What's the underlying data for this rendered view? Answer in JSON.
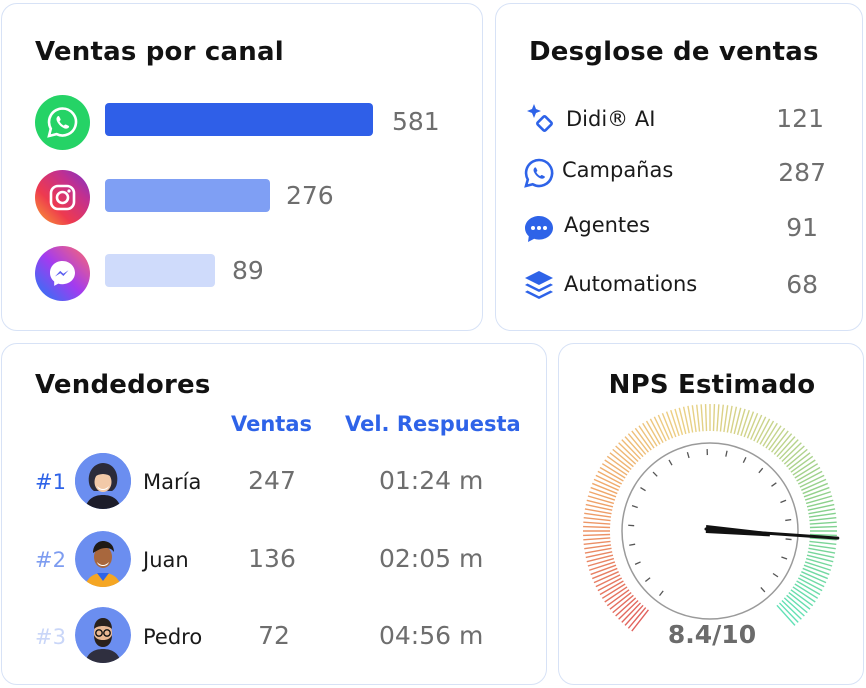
{
  "canal": {
    "title": "Ventas por canal",
    "channels": [
      {
        "name": "whatsapp",
        "value": "581",
        "bar_color": "#2f5fe8",
        "icon": "whatsapp-icon"
      },
      {
        "name": "instagram",
        "value": "276",
        "bar_color": "#7f9ff4",
        "icon": "instagram-icon"
      },
      {
        "name": "messenger",
        "value": "89",
        "bar_color": "#cfdbfb",
        "icon": "messenger-icon"
      }
    ]
  },
  "desglose": {
    "title": "Desglose de ventas",
    "items": [
      {
        "label": "Didi® AI",
        "value": "121",
        "icon": "sparkle-icon"
      },
      {
        "label": "Campañas",
        "value": "287",
        "icon": "whatsapp-icon"
      },
      {
        "label": "Agentes",
        "value": "91",
        "icon": "chat-bubble-icon"
      },
      {
        "label": "Automations",
        "value": "68",
        "icon": "layers-icon"
      }
    ]
  },
  "vendedores": {
    "title": "Vendedores",
    "col_ventas": "Ventas",
    "col_vel": "Vel. Respuesta",
    "rows": [
      {
        "rank": "#1",
        "name": "María",
        "ventas": "247",
        "vel": "01:24 m",
        "rank_color": "#2e63e8"
      },
      {
        "rank": "#2",
        "name": "Juan",
        "ventas": "136",
        "vel": "02:05 m",
        "rank_color": "#7d9cf0"
      },
      {
        "rank": "#3",
        "name": "Pedro",
        "ventas": "72",
        "vel": "04:56 m",
        "rank_color": "#c9d6f8"
      }
    ]
  },
  "nps": {
    "title": "NPS Estimado",
    "value": "8.4/10",
    "score": 8.4,
    "max": 10
  },
  "colors": {
    "accent": "#2e63e8",
    "card_border": "#d7e2f6",
    "whatsapp": "#25d366"
  }
}
